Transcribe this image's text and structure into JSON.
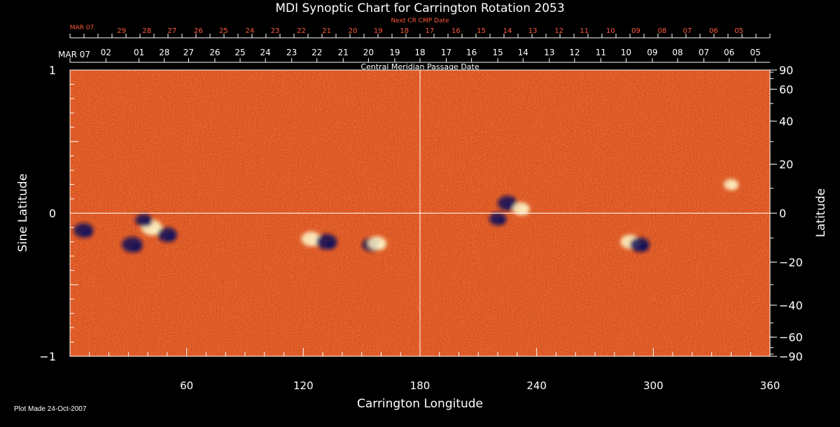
{
  "chart_data": {
    "type": "heatmap",
    "title": "MDI Synoptic Chart for Carrington Rotation 2053",
    "xlabel": "Carrington Longitude",
    "ylabel_left": "Sine Latitude",
    "ylabel_right": "Latitude",
    "top_axis_label": "Central Meridian Passage Date",
    "next_axis_label": "Next CR CMP Date",
    "xlim": [
      0,
      360
    ],
    "ylim": [
      -1,
      1
    ],
    "x_ticks": [
      60,
      120,
      180,
      240,
      300,
      360
    ],
    "y_ticks_left": [
      {
        "v": 1,
        "label": "1"
      },
      {
        "v": 0,
        "label": "0"
      },
      {
        "v": -1,
        "label": "−1"
      }
    ],
    "y_ticks_right": [
      {
        "deg": 90,
        "label": "90"
      },
      {
        "deg": 60,
        "label": "60"
      },
      {
        "deg": 40,
        "label": "40"
      },
      {
        "deg": 20,
        "label": "20"
      },
      {
        "deg": 0,
        "label": "0"
      },
      {
        "deg": -20,
        "label": "−20"
      },
      {
        "deg": -40,
        "label": "−40"
      },
      {
        "deg": -60,
        "label": "−60"
      },
      {
        "deg": -90,
        "label": "−90"
      }
    ],
    "cmp_dates": [
      {
        "lon": 0,
        "label": "MAR 07"
      },
      {
        "lon": 18.5,
        "label": "02"
      },
      {
        "lon": 35.5,
        "label": "01"
      },
      {
        "lon": 48.5,
        "label": "28"
      },
      {
        "lon": 61,
        "label": "27"
      },
      {
        "lon": 74.5,
        "label": "26"
      },
      {
        "lon": 87.5,
        "label": "25"
      },
      {
        "lon": 100.5,
        "label": "24"
      },
      {
        "lon": 114,
        "label": "23"
      },
      {
        "lon": 127,
        "label": "22"
      },
      {
        "lon": 140.5,
        "label": "21"
      },
      {
        "lon": 153.5,
        "label": "20"
      },
      {
        "lon": 167,
        "label": "19"
      },
      {
        "lon": 180,
        "label": "18"
      },
      {
        "lon": 193.5,
        "label": "17"
      },
      {
        "lon": 206.5,
        "label": "16"
      },
      {
        "lon": 220,
        "label": "15"
      },
      {
        "lon": 233,
        "label": "14"
      },
      {
        "lon": 246.5,
        "label": "13"
      },
      {
        "lon": 259.5,
        "label": "12"
      },
      {
        "lon": 273,
        "label": "11"
      },
      {
        "lon": 286,
        "label": "10"
      },
      {
        "lon": 299.5,
        "label": "09"
      },
      {
        "lon": 312.5,
        "label": "08"
      },
      {
        "lon": 326,
        "label": "07"
      },
      {
        "lon": 339,
        "label": "06"
      },
      {
        "lon": 352.5,
        "label": "05"
      }
    ],
    "next_cmp_dates": [
      {
        "lon": 6,
        "label": "MAR 07"
      },
      {
        "lon": 26.5,
        "label": "29"
      },
      {
        "lon": 39.5,
        "label": "28"
      },
      {
        "lon": 52.5,
        "label": "27"
      },
      {
        "lon": 66,
        "label": "26"
      },
      {
        "lon": 79,
        "label": "25"
      },
      {
        "lon": 92.5,
        "label": "24"
      },
      {
        "lon": 105.5,
        "label": "23"
      },
      {
        "lon": 119,
        "label": "22"
      },
      {
        "lon": 132,
        "label": "21"
      },
      {
        "lon": 145.5,
        "label": "20"
      },
      {
        "lon": 158.5,
        "label": "19"
      },
      {
        "lon": 172,
        "label": "18"
      },
      {
        "lon": 185,
        "label": "17"
      },
      {
        "lon": 198.5,
        "label": "16"
      },
      {
        "lon": 211.5,
        "label": "15"
      },
      {
        "lon": 225,
        "label": "14"
      },
      {
        "lon": 238,
        "label": "13"
      },
      {
        "lon": 251.5,
        "label": "12"
      },
      {
        "lon": 264.5,
        "label": "11"
      },
      {
        "lon": 278,
        "label": "10"
      },
      {
        "lon": 291,
        "label": "09"
      },
      {
        "lon": 304.5,
        "label": "08"
      },
      {
        "lon": 317.5,
        "label": "07"
      },
      {
        "lon": 331,
        "label": "06"
      },
      {
        "lon": 344,
        "label": "05"
      }
    ],
    "active_regions": [
      {
        "lon": 7,
        "sinlat": -0.12,
        "polarity": "negative",
        "strength": 0.9
      },
      {
        "lon": 42,
        "sinlat": -0.1,
        "polarity": "positive",
        "strength": 1.0
      },
      {
        "lon": 32,
        "sinlat": -0.22,
        "polarity": "negative",
        "strength": 1.0
      },
      {
        "lon": 50,
        "sinlat": -0.15,
        "polarity": "negative",
        "strength": 0.9
      },
      {
        "lon": 38,
        "sinlat": -0.05,
        "polarity": "negative",
        "strength": 0.7
      },
      {
        "lon": 124,
        "sinlat": -0.18,
        "polarity": "positive",
        "strength": 0.9
      },
      {
        "lon": 132,
        "sinlat": -0.2,
        "polarity": "negative",
        "strength": 1.0
      },
      {
        "lon": 155,
        "sinlat": -0.22,
        "polarity": "negative",
        "strength": 0.8
      },
      {
        "lon": 158,
        "sinlat": -0.21,
        "polarity": "positive",
        "strength": 0.8
      },
      {
        "lon": 225,
        "sinlat": 0.07,
        "polarity": "negative",
        "strength": 0.9
      },
      {
        "lon": 220,
        "sinlat": -0.04,
        "polarity": "negative",
        "strength": 0.7
      },
      {
        "lon": 232,
        "sinlat": 0.03,
        "polarity": "positive",
        "strength": 0.7
      },
      {
        "lon": 288,
        "sinlat": -0.2,
        "polarity": "positive",
        "strength": 0.85
      },
      {
        "lon": 293,
        "sinlat": -0.22,
        "polarity": "negative",
        "strength": 0.9
      },
      {
        "lon": 340,
        "sinlat": 0.2,
        "polarity": "positive",
        "strength": 0.5
      }
    ],
    "grid": false,
    "colors": {
      "background": "#000000",
      "field": "#e8521e",
      "positive": "#fff6c8",
      "negative": "#10105a",
      "axis": "#ffffff",
      "date_text": "#ff5a3a"
    }
  },
  "footer": {
    "plot_made": "Plot Made 24-Oct-2007"
  }
}
